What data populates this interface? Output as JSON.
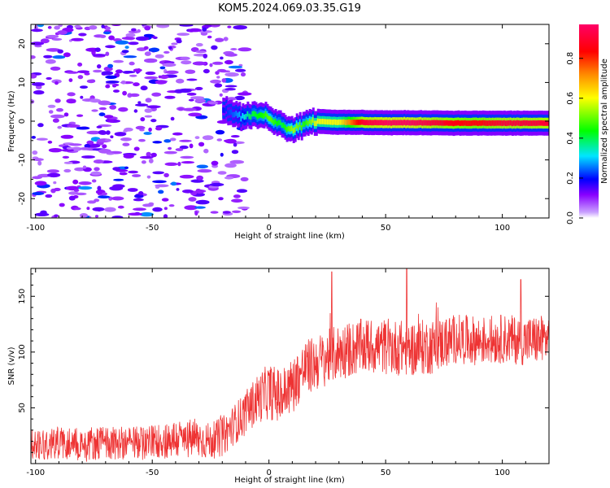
{
  "figure": {
    "title": "KOM5.2024.069.03.35.G19"
  },
  "chart_data": [
    {
      "type": "heatmap",
      "xlabel": "Height of straight line (km)",
      "ylabel": "Frequency (Hz)",
      "xlim": [
        -102,
        120
      ],
      "ylim": [
        -25,
        25
      ],
      "xticks": [
        -100,
        -50,
        0,
        50,
        100
      ],
      "yticks": [
        -20,
        -10,
        0,
        10,
        20
      ],
      "grid": false,
      "colorbar": {
        "label": "Normalized spectral amplitude",
        "range": [
          0,
          0.97
        ],
        "ticks": [
          0.0,
          0.2,
          0.4,
          0.6,
          0.8
        ],
        "colormap": [
          "#ffffff",
          "#c9a0ff",
          "#8800ff",
          "#0000ff",
          "#00e5ff",
          "#00ff00",
          "#ffff00",
          "#ff8c00",
          "#ff0000",
          "#ff0066"
        ]
      },
      "noise_region": {
        "x": [
          -102,
          -20
        ],
        "freq": [
          -25,
          25
        ],
        "amplitude": [
          0.05,
          0.15
        ]
      },
      "signal_ridge": [
        {
          "x": -20,
          "freq": 3,
          "amplitude": 0.2
        },
        {
          "x": -15,
          "freq": 2,
          "amplitude": 0.25
        },
        {
          "x": -12,
          "freq": 1,
          "amplitude": 0.3
        },
        {
          "x": -8,
          "freq": 1.5,
          "amplitude": 0.4
        },
        {
          "x": -3,
          "freq": 1.5,
          "amplitude": 0.45
        },
        {
          "x": 0,
          "freq": 1,
          "amplitude": 0.5
        },
        {
          "x": 5,
          "freq": -1,
          "amplitude": 0.4
        },
        {
          "x": 10,
          "freq": -2,
          "amplitude": 0.55
        },
        {
          "x": 15,
          "freq": -0.5,
          "amplitude": 0.45
        },
        {
          "x": 20,
          "freq": 0,
          "amplitude": 0.6
        },
        {
          "x": 30,
          "freq": -0.3,
          "amplitude": 0.6
        },
        {
          "x": 40,
          "freq": -0.3,
          "amplitude": 0.9
        },
        {
          "x": 50,
          "freq": -0.4,
          "amplitude": 0.95
        },
        {
          "x": 60,
          "freq": -0.4,
          "amplitude": 0.95
        },
        {
          "x": 70,
          "freq": -0.4,
          "amplitude": 0.9
        },
        {
          "x": 80,
          "freq": -0.5,
          "amplitude": 0.85
        },
        {
          "x": 90,
          "freq": -0.5,
          "amplitude": 0.85
        },
        {
          "x": 100,
          "freq": -0.5,
          "amplitude": 0.9
        },
        {
          "x": 110,
          "freq": -0.5,
          "amplitude": 0.9
        },
        {
          "x": 120,
          "freq": -0.5,
          "amplitude": 0.9
        }
      ]
    },
    {
      "type": "line",
      "xlabel": "Height of straight line (km)",
      "ylabel": "SNR (v/v)",
      "xlim": [
        -102,
        120
      ],
      "ylim": [
        0,
        175
      ],
      "xticks": [
        -100,
        -50,
        0,
        50,
        100
      ],
      "yticks": [
        50,
        100,
        150
      ],
      "grid": false,
      "line_color": "#ee3333",
      "series": [
        {
          "x": [
            -100,
            -90,
            -80,
            -70,
            -60,
            -50,
            -40,
            -30,
            -25,
            -20,
            -15,
            -10,
            -5,
            0,
            5,
            10,
            15,
            20,
            25,
            30,
            40,
            50,
            60,
            70,
            80,
            90,
            100,
            110,
            120
          ],
          "y": [
            18,
            19,
            18,
            19,
            18,
            20,
            22,
            22,
            20,
            24,
            35,
            45,
            58,
            65,
            60,
            70,
            85,
            90,
            95,
            100,
            105,
            105,
            103,
            105,
            112,
            110,
            112,
            110,
            112
          ],
          "spread": [
            15,
            15,
            15,
            15,
            15,
            15,
            18,
            18,
            16,
            18,
            18,
            20,
            22,
            25,
            25,
            25,
            25,
            25,
            25,
            25,
            25,
            25,
            25,
            25,
            22,
            22,
            22,
            22,
            22
          ]
        }
      ],
      "peaks": [
        {
          "x": 27,
          "y": 172
        },
        {
          "x": 59,
          "y": 175
        },
        {
          "x": 108,
          "y": 165
        }
      ]
    }
  ]
}
